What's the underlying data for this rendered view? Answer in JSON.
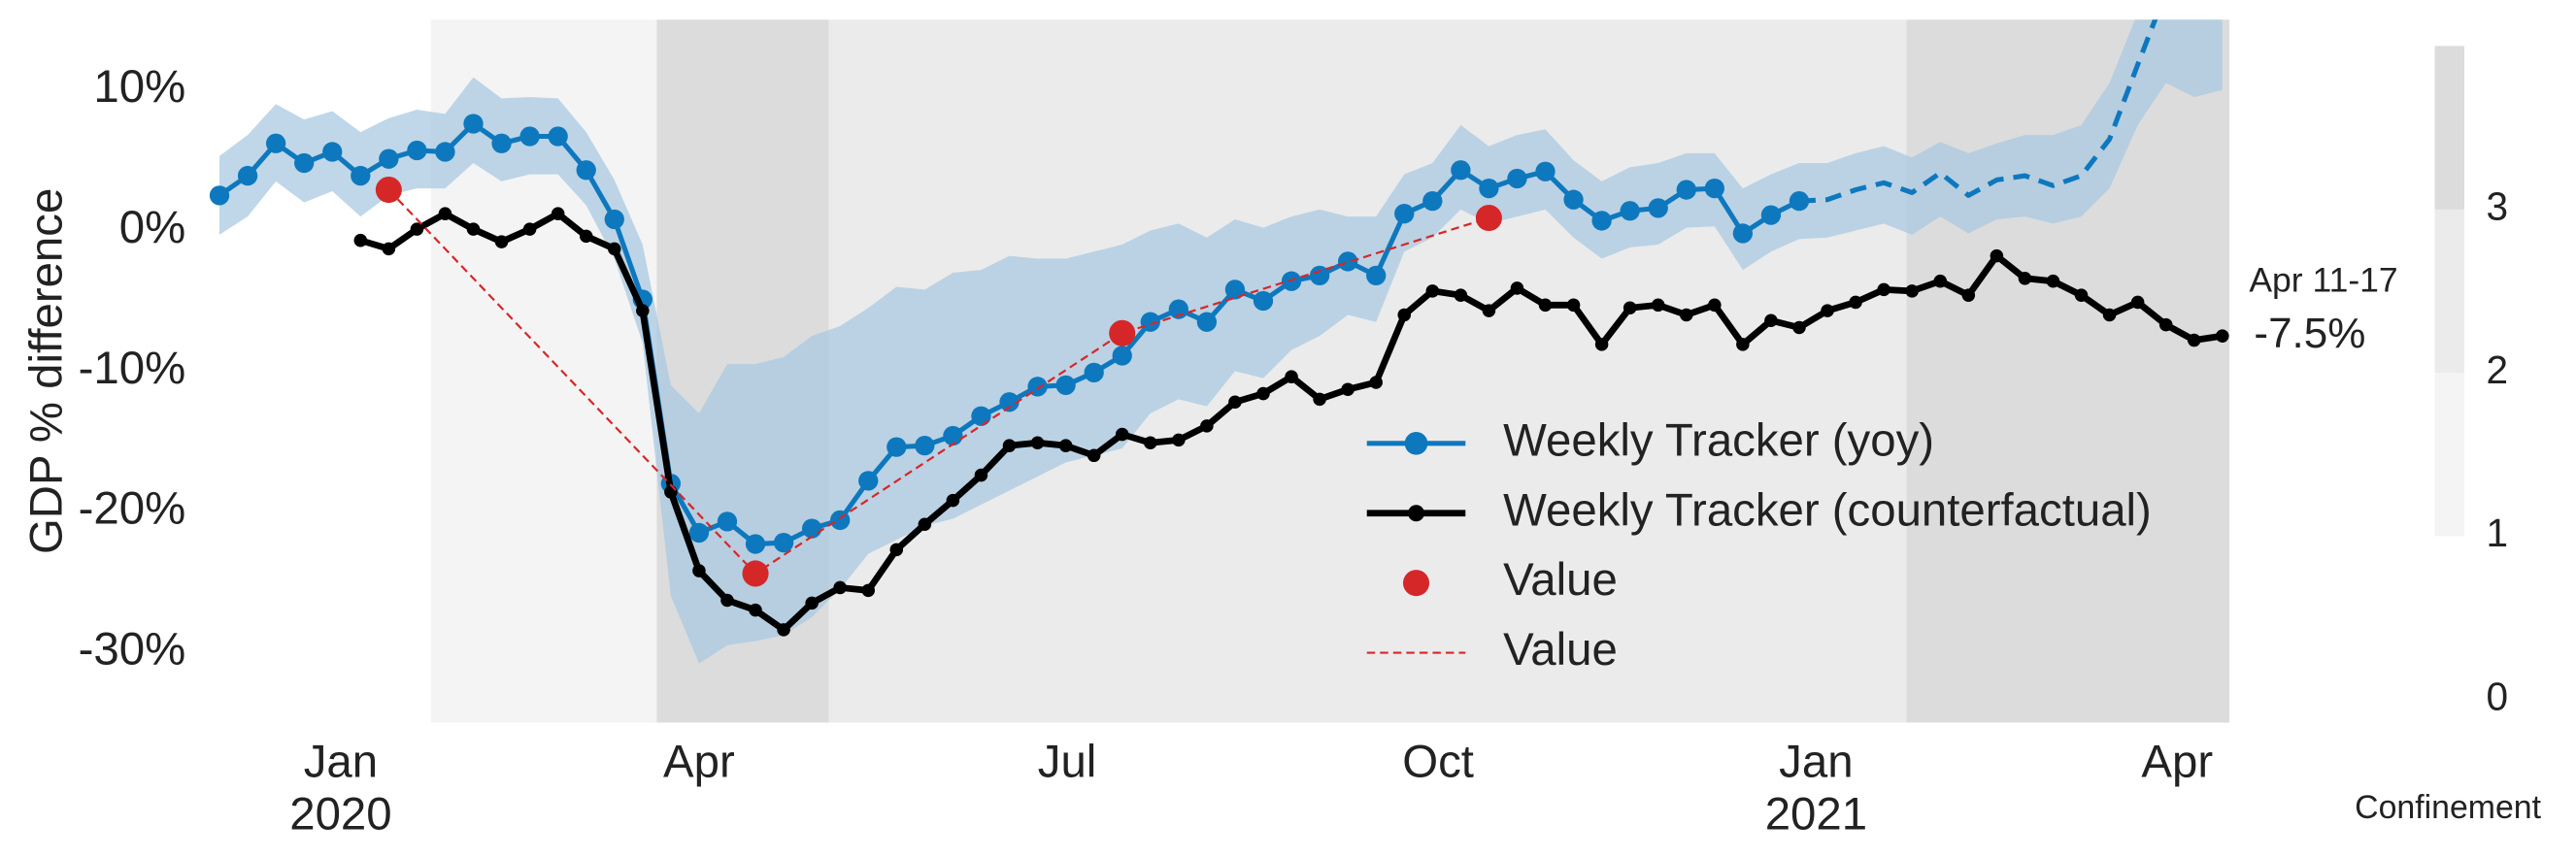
{
  "chart_data": {
    "type": "line",
    "y_label": "GDP % difference",
    "xlim": [
      -0.5,
      71.25
    ],
    "xticks": [
      {
        "value": 4.3,
        "label": "Jan\n2020"
      },
      {
        "value": 17.0,
        "label": "Apr"
      },
      {
        "value": 30.05,
        "label": "Jul"
      },
      {
        "value": 43.2,
        "label": "Oct"
      },
      {
        "value": 56.6,
        "label": "Jan\n2021"
      },
      {
        "value": 69.4,
        "label": "Apr"
      }
    ],
    "ylim": [
      -35,
      15
    ],
    "yticks": [
      {
        "value": 10,
        "label": "10%"
      },
      {
        "value": 0,
        "label": "0%"
      },
      {
        "value": -10,
        "label": "-10%"
      },
      {
        "value": -20,
        "label": "-20%"
      },
      {
        "value": -30,
        "label": "-30%"
      }
    ],
    "grid": false,
    "legend": "lower right",
    "band": {
      "color": "#a9c9e2",
      "upper": [
        5.3,
        6.8,
        9.0,
        7.9,
        8.5,
        7.0,
        8.0,
        8.6,
        8.3,
        10.9,
        9.4,
        9.5,
        9.4,
        7.0,
        3.6,
        -1.0,
        -11.0,
        -13.0,
        -9.5,
        -9.5,
        -9.0,
        -7.5,
        -6.8,
        -5.5,
        -4.0,
        -4.2,
        -3.0,
        -2.8,
        -1.8,
        -2.0,
        -2.0,
        -1.5,
        -1.0,
        0.0,
        0.5,
        -0.5,
        0.8,
        0.2,
        1.0,
        1.5,
        1.0,
        1.0,
        4.0,
        4.8,
        7.5,
        6.0,
        6.8,
        7.2,
        5.0,
        3.5,
        4.5,
        4.8,
        5.5,
        5.5,
        3.0,
        4.0,
        4.8,
        4.8,
        5.5,
        6.0,
        5.2,
        6.3,
        5.5,
        6.2,
        6.8,
        6.8,
        7.5,
        10.5,
        15.5,
        18,
        20,
        20
      ],
      "lower": [
        -0.3,
        1.0,
        3.5,
        2.0,
        2.8,
        1.0,
        2.5,
        3.0,
        3.0,
        4.8,
        3.5,
        4.0,
        4.0,
        1.8,
        -2.0,
        -8.0,
        -26.0,
        -30.8,
        -29.5,
        -29.2,
        -28.8,
        -27.5,
        -25.5,
        -23.0,
        -22.0,
        -21.0,
        -20.5,
        -19.5,
        -18.5,
        -17.5,
        -16.5,
        -16.0,
        -15.5,
        -13.0,
        -12.0,
        -12.5,
        -10.0,
        -10.5,
        -8.5,
        -7.5,
        -6.0,
        -6.5,
        -1.5,
        -0.5,
        1.5,
        0.5,
        1.0,
        1.5,
        -0.5,
        -2.0,
        -1.2,
        -1.0,
        0.2,
        0.3,
        -2.8,
        -1.5,
        -0.6,
        -0.5,
        0.0,
        0.5,
        -0.3,
        1.0,
        -0.2,
        0.8,
        1.0,
        0.5,
        1.0,
        3.0,
        7.5,
        10.5,
        9.5,
        10.0
      ]
    },
    "series": [
      {
        "name": "Weekly Tracker (yoy)",
        "color": "#0e78be",
        "style": "solid",
        "marker": "circle",
        "values": [
          2.5,
          3.9,
          6.2,
          4.8,
          5.6,
          3.9,
          5.1,
          5.7,
          5.6,
          7.6,
          6.2,
          6.7,
          6.7,
          4.3,
          0.8,
          -4.9,
          -18.0,
          -21.5,
          -20.7,
          -22.3,
          -22.2,
          -21.2,
          -20.6,
          -17.8,
          -15.4,
          -15.3,
          -14.6,
          -13.2,
          -12.2,
          -11.1,
          -11.0,
          -10.1,
          -8.9,
          -6.5,
          -5.6,
          -6.5,
          -4.2,
          -5.0,
          -3.6,
          -3.2,
          -2.2,
          -3.2,
          1.2,
          2.1,
          4.3,
          3.0,
          3.7,
          4.2,
          2.2,
          0.7,
          1.4,
          1.6,
          2.9,
          3.0,
          -0.2,
          1.1,
          2.1,
          null,
          null,
          null,
          null,
          null,
          null,
          null,
          null,
          null,
          null,
          null,
          null,
          null,
          null,
          null
        ]
      },
      {
        "color": "#0e78be",
        "style": "dashed",
        "marker": "none",
        "values": [
          null,
          null,
          null,
          null,
          null,
          null,
          null,
          null,
          null,
          null,
          null,
          null,
          null,
          null,
          null,
          null,
          null,
          null,
          null,
          null,
          null,
          null,
          null,
          null,
          null,
          null,
          null,
          null,
          null,
          null,
          null,
          null,
          null,
          null,
          null,
          null,
          null,
          null,
          null,
          null,
          null,
          null,
          null,
          null,
          null,
          null,
          null,
          null,
          null,
          null,
          null,
          null,
          null,
          null,
          null,
          null,
          2.1,
          2.2,
          2.9,
          3.4,
          2.7,
          4.1,
          2.5,
          3.6,
          3.9,
          3.2,
          3.9,
          6.5,
          11.8,
          17,
          17,
          15.5
        ]
      },
      {
        "name": "Weekly Tracker (counterfactual)",
        "color": "#000000",
        "style": "solid",
        "marker": "circle",
        "values": [
          null,
          null,
          null,
          null,
          null,
          -0.7,
          -1.3,
          0.1,
          1.2,
          0.1,
          -0.8,
          0.1,
          1.2,
          -0.4,
          -1.3,
          -5.7,
          -18.6,
          -24.2,
          -26.3,
          -27.0,
          -28.4,
          -26.5,
          -25.4,
          -25.6,
          -22.7,
          -20.9,
          -19.2,
          -17.4,
          -15.3,
          -15.1,
          -15.3,
          -16.0,
          -14.5,
          -15.1,
          -14.9,
          -13.9,
          -12.2,
          -11.6,
          -10.4,
          -12.0,
          -11.3,
          -10.8,
          -6.0,
          -4.3,
          -4.6,
          -5.7,
          -4.1,
          -5.3,
          -5.3,
          -8.1,
          -5.5,
          -5.3,
          -6.0,
          -5.3,
          -8.1,
          -6.4,
          -6.9,
          -5.7,
          -5.1,
          -4.2,
          -4.3,
          -3.6,
          -4.6,
          -1.8,
          -3.4,
          -3.6,
          -4.6,
          -6.0,
          -5.1,
          -6.7,
          -7.8,
          -7.5
        ]
      },
      {
        "name": "Value",
        "color": "#d62728",
        "style": "none",
        "marker": "circle",
        "x": [
          6,
          19,
          32,
          45
        ],
        "values": [
          2.9,
          -24.4,
          -7.3,
          0.9
        ]
      },
      {
        "name": "Value",
        "color": "#d62728",
        "style": "dashed",
        "marker": "none",
        "x": [
          6,
          19,
          32,
          45
        ],
        "values": [
          2.9,
          -24.4,
          -7.3,
          0.9
        ]
      }
    ],
    "annotation": {
      "text": "Apr 11-17",
      "value": -7.5,
      "value_label": "-7.5%"
    },
    "confinement": {
      "label": "Confinement",
      "lim": [
        0,
        4
      ],
      "ticks": [
        0,
        1,
        2,
        3
      ],
      "colors": [
        "#ffffff",
        "#f4f4f4",
        "#ebebeb",
        "#dcdcdc"
      ],
      "periods": [
        {
          "start": -0.5,
          "end": 7.5,
          "level": 0
        },
        {
          "start": 7.5,
          "end": 15.5,
          "level": 1
        },
        {
          "start": 15.5,
          "end": 21.6,
          "level": 3
        },
        {
          "start": 21.6,
          "end": 59.8,
          "level": 2
        },
        {
          "start": 59.8,
          "end": 71.25,
          "level": 3
        }
      ]
    }
  }
}
